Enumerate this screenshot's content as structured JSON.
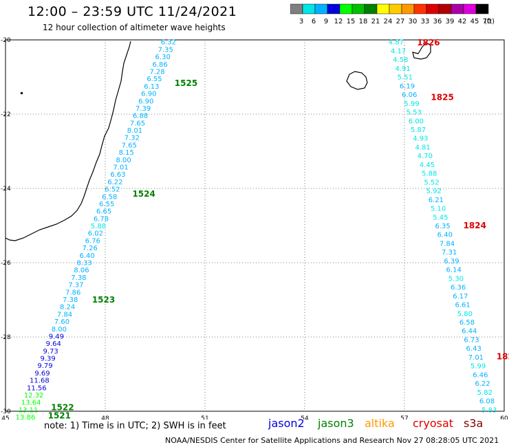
{
  "header": {
    "title": "12:00 – 23:59 UTC 11/24/2021",
    "subtitle": "12 hour collection of altimeter wave heights"
  },
  "legend": {
    "unit": "(ft)",
    "bins": [
      {
        "label": "3",
        "color": "#7f7f7f"
      },
      {
        "label": "6",
        "color": "#00e5e5"
      },
      {
        "label": "9",
        "color": "#00b2ff"
      },
      {
        "label": "12",
        "color": "#0000dd"
      },
      {
        "label": "15",
        "color": "#00ff00"
      },
      {
        "label": "18",
        "color": "#00c000"
      },
      {
        "label": "21",
        "color": "#008000"
      },
      {
        "label": "24",
        "color": "#ffff00"
      },
      {
        "label": "27",
        "color": "#ffcc00"
      },
      {
        "label": "30",
        "color": "#ff9900"
      },
      {
        "label": "33",
        "color": "#ff3300"
      },
      {
        "label": "36",
        "color": "#dd0000"
      },
      {
        "label": "39",
        "color": "#b20000"
      },
      {
        "label": "42",
        "color": "#aa00aa"
      },
      {
        "label": "45",
        "color": "#dd00dd"
      },
      {
        "label": "70",
        "color": "#000000"
      }
    ]
  },
  "axes": {
    "lon_labels": [
      "45",
      "48",
      "51",
      "54",
      "57",
      "60"
    ],
    "lat_labels": [
      "-20",
      "-22",
      "-24",
      "-26",
      "-28",
      "-30"
    ]
  },
  "tracks": [
    {
      "satellite": "jason3",
      "times": [
        {
          "text": "1525",
          "lat": -21.17
        },
        {
          "text": "1524",
          "lat": -24.15
        },
        {
          "text": "1523",
          "lat": -27.0
        },
        {
          "text": "1522",
          "lat": -29.9
        },
        {
          "text": "1521",
          "lat": -30.12
        }
      ],
      "start": [
        49.9,
        -20.05
      ],
      "end": [
        45.6,
        -30.15
      ],
      "values": [
        "6.32",
        "7.35",
        "6.30",
        "6.86",
        "7.28",
        "6.55",
        "6.13",
        "6.90",
        "6.90",
        "7.39",
        "6.88",
        "7.65",
        "8.01",
        "7.32",
        "7.65",
        "8.15",
        "8.00",
        "7.01",
        "6.63",
        "6.22",
        "6.52",
        "6.58",
        "6.55",
        "6.65",
        "6.78",
        "5.88",
        "6.02",
        "6.76",
        "7.26",
        "6.40",
        "8.33",
        "8.06",
        "7.38",
        "7.37",
        "7.86",
        "7.38",
        "8.24",
        "7.84",
        "7.60",
        "8.00",
        "9.49",
        "9.64",
        "9.73",
        "9.39",
        "9.79",
        "9.69",
        "11.68",
        "11.56",
        "12.32",
        "13.64",
        "13.11",
        "13.86"
      ]
    },
    {
      "satellite": "cryosat",
      "times": [
        {
          "text": "1826",
          "lat": -20.07
        },
        {
          "text": "1825",
          "lat": -21.55
        },
        {
          "text": "1824",
          "lat": -25.0
        },
        {
          "text": "182",
          "lat": -28.53
        }
      ],
      "start": [
        56.75,
        -20.05
      ],
      "end": [
        59.55,
        -29.95
      ],
      "values": [
        "4.87",
        "4.17",
        "4.58",
        "4.91",
        "5.51",
        "6.19",
        "6.06",
        "5.99",
        "5.53",
        "6.00",
        "5.87",
        "4.93",
        "4.81",
        "4.70",
        "4.45",
        "5.88",
        "5.52",
        "5.92",
        "6.21",
        "5.10",
        "5.45",
        "6.35",
        "6.40",
        "7.84",
        "7.31",
        "6.39",
        "6.14",
        "5.30",
        "6.36",
        "6.17",
        "6.61",
        "5.80",
        "6.58",
        "6.44",
        "6.73",
        "6.43",
        "7.01",
        "5.99",
        "6.46",
        "6.22",
        "5.82",
        "6.08",
        "5.83"
      ]
    }
  ],
  "footer": {
    "note": "note:  1) Time is in UTC;  2) SWH is in feet",
    "credit": "NOAA/NESDIS Center for Satellite Applications and Research    Nov 27 08:28:05 UTC 2021",
    "satellites": [
      {
        "key": "jason2",
        "label": "jason2",
        "color": "#0000dd"
      },
      {
        "key": "jason3",
        "label": "jason3",
        "color": "#008000"
      },
      {
        "key": "altika",
        "label": "altika",
        "color": "#ff9900"
      },
      {
        "key": "cryosat",
        "label": "cryosat",
        "color": "#dd0000"
      },
      {
        "key": "s3a",
        "label": "s3a",
        "color": "#800000"
      }
    ]
  }
}
